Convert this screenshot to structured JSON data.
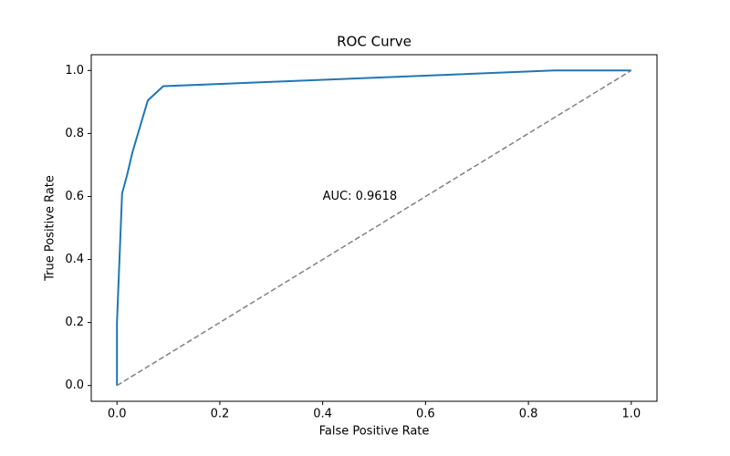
{
  "chart_data": {
    "type": "line",
    "title": "ROC Curve",
    "x_label": "False Positive Rate",
    "y_label": "True Positive Rate",
    "series": [
      {
        "color": "#1f77b4",
        "dashed": false,
        "x": [
          0,
          0,
          0.01,
          0.02,
          0.03,
          0.06,
          0.09,
          0.85,
          1.0
        ],
        "values": [
          0,
          0.2,
          0.61,
          0.67,
          0.74,
          0.905,
          0.95,
          1.0,
          1.0
        ]
      },
      {
        "color": "#808080",
        "dashed": true,
        "x": [
          0,
          1
        ],
        "values": [
          0,
          1
        ]
      }
    ],
    "annotation": {
      "text": "AUC: 0.9618",
      "x": 0.4,
      "y": 0.6
    },
    "xlim": [
      -0.05,
      1.05
    ],
    "ylim": [
      -0.05,
      1.05
    ],
    "xticks": [
      {
        "value": 0,
        "label": "0.0"
      },
      {
        "value": 0.2,
        "label": "0.2"
      },
      {
        "value": 0.4,
        "label": "0.4"
      },
      {
        "value": 0.6,
        "label": "0.6"
      },
      {
        "value": 0.8,
        "label": "0.8"
      },
      {
        "value": 1,
        "label": "1.0"
      }
    ],
    "yticks": [
      {
        "value": 0,
        "label": "0.0"
      },
      {
        "value": 0.2,
        "label": "0.2"
      },
      {
        "value": 0.4,
        "label": "0.4"
      },
      {
        "value": 0.6,
        "label": "0.6"
      },
      {
        "value": 0.8,
        "label": "0.8"
      },
      {
        "value": 1,
        "label": "1.0"
      }
    ],
    "grid": false
  }
}
